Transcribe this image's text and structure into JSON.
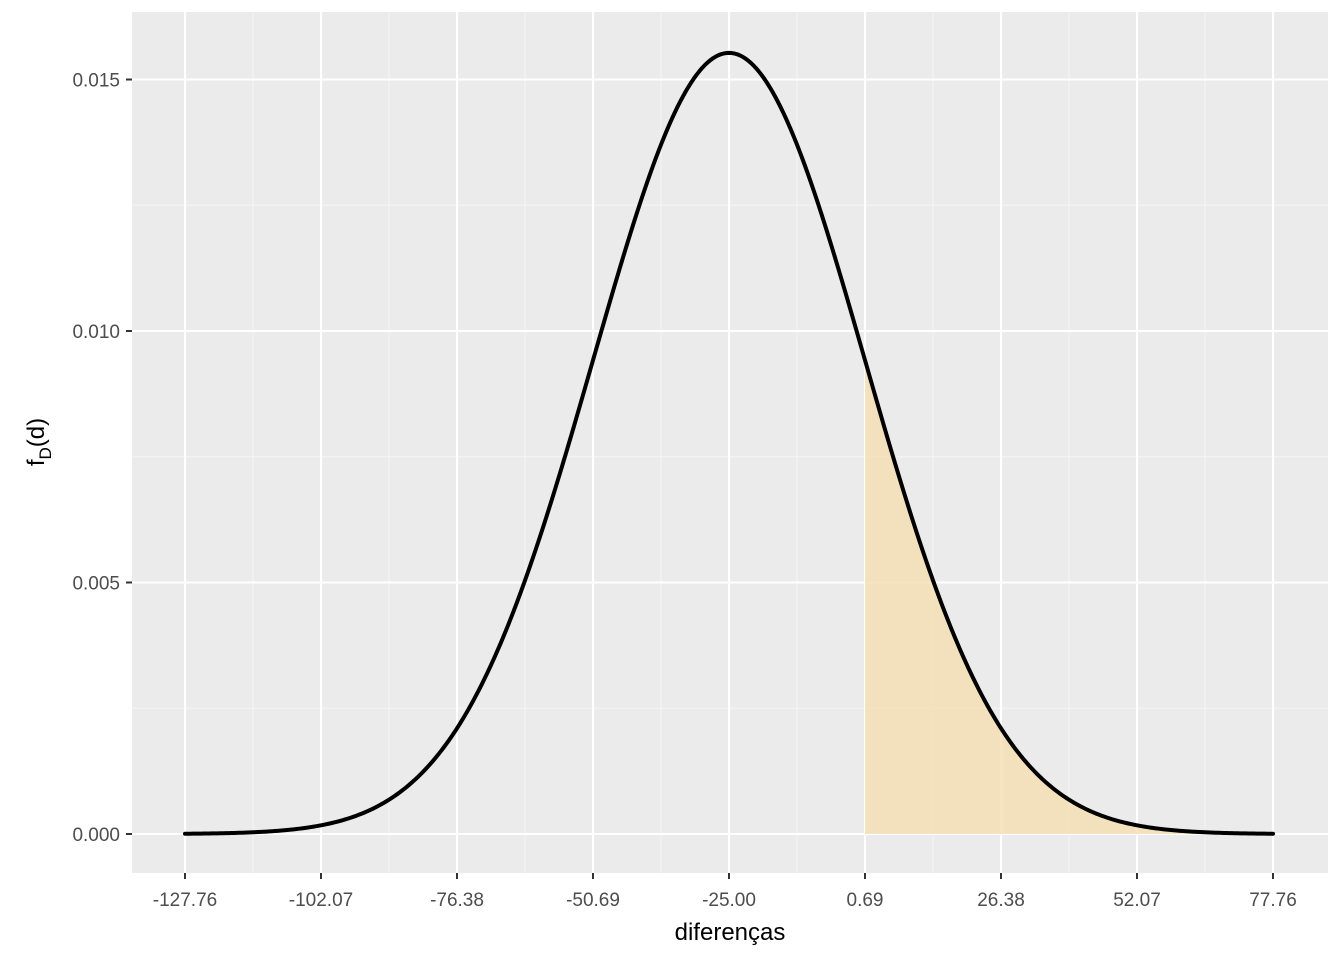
{
  "chart_data": {
    "type": "area",
    "xlabel": "diferenças",
    "ylabel": "f",
    "ylabel_sub": "D",
    "ylabel_suffix": "(d)",
    "distribution": {
      "family": "normal",
      "mean": -25.0,
      "sd": 25.69
    },
    "xlim": [
      -127.76,
      77.76
    ],
    "ylim": [
      0,
      0.0155
    ],
    "x_ticks": [
      -127.76,
      -102.07,
      -76.38,
      -50.69,
      -25.0,
      0.69,
      26.38,
      52.07,
      77.76
    ],
    "x_tick_labels": [
      "-127.76",
      "-102.07",
      "-76.38",
      "-50.69",
      "-25.00",
      "0.69",
      "26.38",
      "52.07",
      "77.76"
    ],
    "y_ticks": [
      0.0,
      0.005,
      0.01,
      0.015
    ],
    "y_tick_labels": [
      "0.000",
      "0.005",
      "0.010",
      "0.015"
    ],
    "shaded_region": {
      "from": 0.69,
      "to": 77.76
    },
    "grid": true,
    "colors": {
      "panel_background": "#ebebeb",
      "grid_major": "#ffffff",
      "grid_minor": "#f5f5f5",
      "curve": "#000000",
      "shade": "#f5deb3",
      "tick_text": "#4d4d4d",
      "tick_mark": "#333333"
    }
  }
}
